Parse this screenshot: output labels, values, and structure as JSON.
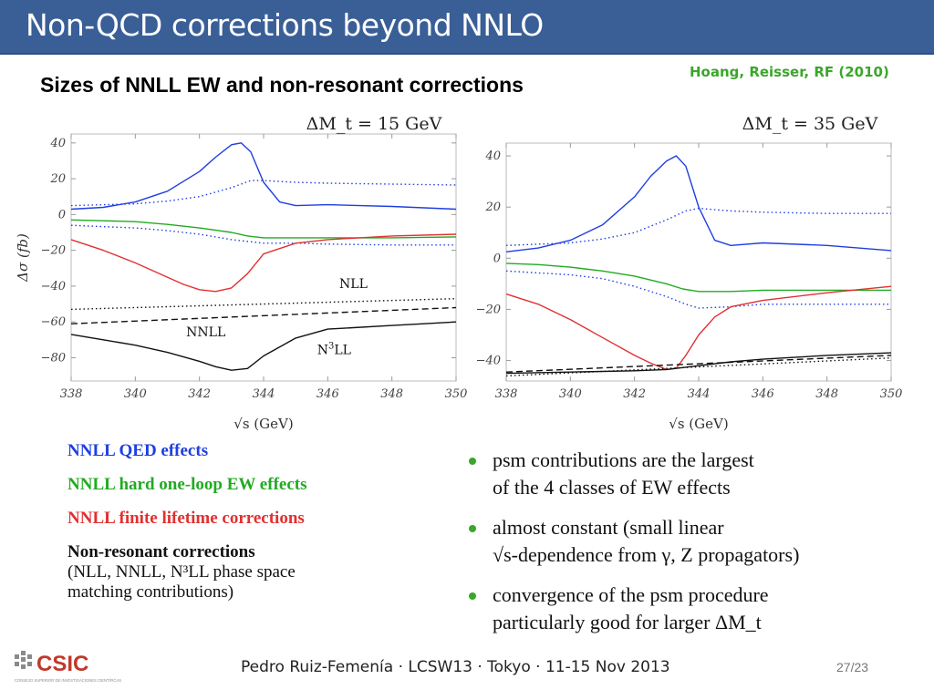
{
  "slide": {
    "title": "Non-QCD corrections beyond NNLO",
    "reference": "Hoang, Reisser, RF (2010)",
    "subtitle": "Sizes of NNLL EW and non-resonant corrections"
  },
  "colors": {
    "title_bar": "#3a5f97",
    "accent_green": "#3aa62a",
    "qed_blue": "#1f3ee0",
    "ew_green": "#22aa22",
    "lifetime_red": "#e23030",
    "nonres_black": "#111111"
  },
  "chart_data": [
    {
      "type": "line",
      "title": "ΔM_t = 15 GeV",
      "xlabel": "√s (GeV)",
      "ylabel": "Δσ (fb)",
      "xlim": [
        338,
        350
      ],
      "ylim": [
        -93,
        45
      ],
      "xticks": [
        "338",
        "340",
        "342",
        "344",
        "346",
        "348",
        "350"
      ],
      "yticks": [
        "40",
        "20",
        "0",
        "−20",
        "−40",
        "−60",
        "−80"
      ],
      "ytick_values": [
        40,
        20,
        0,
        -20,
        -40,
        -60,
        -80
      ],
      "grid": false,
      "annotations": [
        {
          "text": "NLL",
          "x": 346.8,
          "y": -41
        },
        {
          "text": "NNLL",
          "x": 342.2,
          "y": -68
        },
        {
          "text": "N",
          "sup": "3",
          "rest": "LL",
          "x": 346.2,
          "y": -78
        }
      ],
      "series": [
        {
          "key": "qed",
          "style": "solid",
          "color": "#1f3ee0",
          "x": [
            338,
            339,
            340,
            341,
            342,
            342.5,
            343,
            343.3,
            343.6,
            344,
            344.5,
            345,
            346,
            348,
            350
          ],
          "y": [
            3,
            4,
            7,
            13,
            24,
            32,
            39,
            40,
            35,
            18,
            7,
            5,
            5.5,
            4.5,
            3
          ]
        },
        {
          "key": "qed_dotted",
          "style": "dotted",
          "color": "#1f3ee0",
          "x": [
            338,
            340,
            341,
            342,
            343,
            343.6,
            344,
            345,
            346,
            348,
            350
          ],
          "y": [
            5,
            6,
            7.5,
            10,
            15,
            19,
            19,
            18,
            17.5,
            17,
            16.5
          ]
        },
        {
          "key": "ew",
          "style": "solid",
          "color": "#22aa22",
          "x": [
            338,
            339,
            340,
            341,
            342,
            343,
            343.5,
            344,
            345,
            346,
            348,
            350
          ],
          "y": [
            -3,
            -3.5,
            -4,
            -5.5,
            -7.5,
            -10,
            -12,
            -13,
            -13,
            -13,
            -13,
            -12.5
          ]
        },
        {
          "key": "ew_dotted",
          "style": "dotted",
          "color": "#1f3ee0",
          "x": [
            338,
            340,
            341,
            342,
            343,
            344,
            345,
            346,
            348,
            350
          ],
          "y": [
            -6,
            -7.5,
            -9,
            -11,
            -14,
            -16,
            -16,
            -16.5,
            -17,
            -17
          ]
        },
        {
          "key": "lifetime",
          "style": "solid",
          "color": "#e23030",
          "x": [
            338,
            339,
            340,
            341,
            341.5,
            342,
            342.5,
            343,
            343.5,
            344,
            345,
            346,
            348,
            350
          ],
          "y": [
            -14,
            -20,
            -27,
            -35,
            -39,
            -42,
            -43,
            -41,
            -33,
            -22,
            -16,
            -14,
            -12,
            -11
          ]
        },
        {
          "key": "nll",
          "style": "dotted",
          "color": "#111111",
          "x": [
            338,
            350
          ],
          "y": [
            -53,
            -47
          ]
        },
        {
          "key": "nnll",
          "style": "dashed",
          "color": "#111111",
          "x": [
            338,
            350
          ],
          "y": [
            -61,
            -52
          ]
        },
        {
          "key": "n3ll",
          "style": "solid",
          "color": "#111111",
          "x": [
            338,
            339,
            340,
            341,
            342,
            342.5,
            343,
            343.5,
            344,
            345,
            346,
            348,
            349,
            350
          ],
          "y": [
            -67,
            -70,
            -73,
            -77,
            -82,
            -85,
            -87,
            -86,
            -79,
            -69,
            -64,
            -62,
            -61,
            -60
          ]
        }
      ]
    },
    {
      "type": "line",
      "title": "ΔM_t = 35 GeV",
      "xlabel": "√s (GeV)",
      "ylabel": "",
      "xlim": [
        338,
        350
      ],
      "ylim": [
        -48,
        45
      ],
      "xticks": [
        "338",
        "340",
        "342",
        "344",
        "346",
        "348",
        "350"
      ],
      "yticks": [
        "40",
        "20",
        "0",
        "−20",
        "−40"
      ],
      "ytick_values": [
        40,
        20,
        0,
        -20,
        -40
      ],
      "grid": false,
      "annotations": [],
      "series": [
        {
          "key": "qed",
          "style": "solid",
          "color": "#1f3ee0",
          "x": [
            338,
            339,
            340,
            341,
            342,
            342.5,
            343,
            343.3,
            343.6,
            344,
            344.5,
            345,
            346,
            348,
            350
          ],
          "y": [
            2.5,
            4,
            7,
            13,
            24,
            32,
            38,
            40,
            36,
            20,
            7,
            5,
            6,
            5,
            3
          ]
        },
        {
          "key": "qed_dotted",
          "style": "dotted",
          "color": "#1f3ee0",
          "x": [
            338,
            340,
            341,
            342,
            343,
            343.6,
            344,
            345,
            346,
            348,
            350
          ],
          "y": [
            5,
            6,
            7.5,
            10,
            15,
            18.5,
            19.5,
            18.5,
            18,
            17.5,
            17.5
          ]
        },
        {
          "key": "ew",
          "style": "solid",
          "color": "#22aa22",
          "x": [
            338,
            339,
            340,
            341,
            342,
            343,
            343.5,
            344,
            345,
            346,
            348,
            350
          ],
          "y": [
            -2,
            -2.5,
            -3.5,
            -5,
            -7,
            -10,
            -12,
            -13,
            -13,
            -12.5,
            -12.5,
            -12.5
          ]
        },
        {
          "key": "ew_dotted",
          "style": "dotted",
          "color": "#1f3ee0",
          "x": [
            338,
            340,
            341,
            342,
            343,
            343.6,
            344,
            345,
            346,
            348,
            350
          ],
          "y": [
            -5,
            -6.5,
            -8,
            -11,
            -15,
            -18,
            -19.5,
            -19,
            -18,
            -18,
            -18
          ]
        },
        {
          "key": "lifetime",
          "style": "solid",
          "color": "#e23030",
          "x": [
            338,
            339,
            340,
            341,
            342,
            342.5,
            343,
            343.3,
            343.6,
            344,
            344.5,
            345,
            346,
            348,
            350
          ],
          "y": [
            -14,
            -18,
            -24,
            -31,
            -38,
            -41,
            -43.5,
            -43,
            -38,
            -30,
            -23,
            -19,
            -16.5,
            -13.5,
            -11
          ]
        },
        {
          "key": "nll",
          "style": "dotted",
          "color": "#111111",
          "x": [
            338,
            350
          ],
          "y": [
            -46,
            -39
          ]
        },
        {
          "key": "nnll",
          "style": "dashed",
          "color": "#111111",
          "x": [
            338,
            350
          ],
          "y": [
            -44.5,
            -38
          ]
        },
        {
          "key": "n3ll",
          "style": "solid",
          "color": "#111111",
          "x": [
            338,
            340,
            342,
            343,
            344,
            345,
            346,
            348,
            350
          ],
          "y": [
            -45,
            -44.5,
            -44,
            -43.5,
            -42,
            -40.5,
            -39.5,
            -38,
            -37
          ]
        }
      ]
    }
  ],
  "legend": {
    "qed": "NNLL QED effects",
    "ew": "NNLL hard one-loop EW effects",
    "lifetime": "NNLL finite lifetime corrections",
    "nonres_title": "Non-resonant corrections",
    "nonres_line1": "(NLL, NNLL, N³LL phase space",
    "nonres_line2": "matching contributions)"
  },
  "bullets": [
    {
      "line1": "psm contributions are the largest",
      "line2": "of the 4 classes of EW effects"
    },
    {
      "line1": "almost constant (small linear",
      "line2": "√s-dependence from γ, Z  propagators)"
    },
    {
      "line1": "convergence of the psm procedure",
      "line2": "particularly good for larger ΔM_t"
    }
  ],
  "footer": {
    "logo_text": "CSIC",
    "logo_subtext": "CONSEJO SUPERIOR DE INVESTIGACIONES CIENTÍFICAS",
    "text": "Pedro Ruiz-Femenía · LCSW13 · Tokyo · 11-15 Nov 2013",
    "page": "27/23"
  }
}
